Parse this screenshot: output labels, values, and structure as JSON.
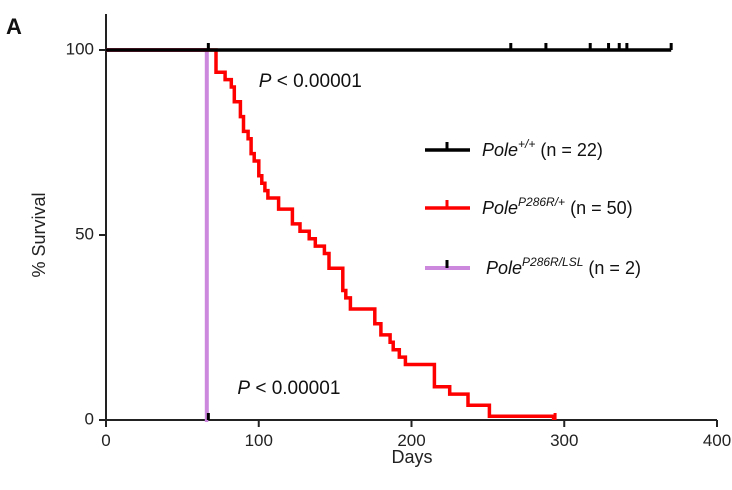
{
  "panel_label": "A",
  "chart_data": {
    "type": "line",
    "subtype": "kaplan-meier-survival",
    "xlabel": "Days",
    "ylabel": "% Survival",
    "xlim": [
      0,
      400
    ],
    "ylim": [
      0,
      100
    ],
    "xticks": [
      0,
      100,
      200,
      300,
      400
    ],
    "yticks": [
      0,
      50,
      100
    ],
    "grid": false,
    "legend_position": "right",
    "annotations": [
      {
        "italic": "P",
        "text": " < 0.00001",
        "x": 100,
        "y": 90
      },
      {
        "italic": "P",
        "text": " < 0.00001",
        "x": 86,
        "y": 7
      }
    ],
    "series": [
      {
        "name": "Pole+/+ (n = 22)",
        "legend": {
          "base": "Pole",
          "sup": "+/+",
          "n": "(n = 22)"
        },
        "color": "#000000",
        "steps": [
          [
            0,
            100
          ],
          [
            370,
            100
          ]
        ],
        "censored": [
          [
            67,
            100
          ],
          [
            265,
            100
          ],
          [
            288,
            100
          ],
          [
            317,
            100
          ],
          [
            329,
            100
          ],
          [
            336,
            100
          ],
          [
            341,
            100
          ],
          [
            370,
            100
          ]
        ]
      },
      {
        "name": "PoleP286R/+ (n = 50)",
        "legend": {
          "base": "Pole",
          "sup": "P286R/+",
          "n": "(n = 50)"
        },
        "color": "#ff0000",
        "steps": [
          [
            0,
            100
          ],
          [
            72,
            100
          ],
          [
            72,
            94
          ],
          [
            78,
            94
          ],
          [
            78,
            92
          ],
          [
            82,
            92
          ],
          [
            82,
            90
          ],
          [
            84,
            90
          ],
          [
            84,
            86
          ],
          [
            88,
            86
          ],
          [
            88,
            82
          ],
          [
            90,
            82
          ],
          [
            90,
            78
          ],
          [
            93,
            78
          ],
          [
            93,
            76
          ],
          [
            95,
            76
          ],
          [
            95,
            72
          ],
          [
            97,
            72
          ],
          [
            97,
            70
          ],
          [
            100,
            70
          ],
          [
            100,
            66
          ],
          [
            102,
            66
          ],
          [
            102,
            64
          ],
          [
            104,
            64
          ],
          [
            104,
            62
          ],
          [
            106,
            62
          ],
          [
            106,
            60
          ],
          [
            113,
            60
          ],
          [
            113,
            57
          ],
          [
            122,
            57
          ],
          [
            122,
            53
          ],
          [
            127,
            53
          ],
          [
            127,
            51
          ],
          [
            133,
            51
          ],
          [
            133,
            49
          ],
          [
            137,
            49
          ],
          [
            137,
            47
          ],
          [
            143,
            47
          ],
          [
            143,
            45
          ],
          [
            146,
            45
          ],
          [
            146,
            41
          ],
          [
            155,
            41
          ],
          [
            155,
            35
          ],
          [
            157,
            35
          ],
          [
            157,
            33
          ],
          [
            160,
            33
          ],
          [
            160,
            30
          ],
          [
            176,
            30
          ],
          [
            176,
            26
          ],
          [
            180,
            26
          ],
          [
            180,
            23
          ],
          [
            186,
            23
          ],
          [
            186,
            21
          ],
          [
            188,
            21
          ],
          [
            188,
            19
          ],
          [
            192,
            19
          ],
          [
            192,
            17
          ],
          [
            196,
            17
          ],
          [
            196,
            15
          ],
          [
            215,
            15
          ],
          [
            215,
            9
          ],
          [
            225,
            9
          ],
          [
            225,
            7
          ],
          [
            237,
            7
          ],
          [
            237,
            4
          ],
          [
            251,
            4
          ],
          [
            251,
            1
          ],
          [
            293,
            1
          ],
          [
            293,
            0
          ]
        ],
        "censored": [
          [
            294,
            0
          ]
        ]
      },
      {
        "name": "PoleP286R/LSL (n = 2)",
        "legend": {
          "base": "Pole",
          "sup": "P286R/LSL",
          "n": "(n = 2)"
        },
        "color": "#cc88dd",
        "steps": [
          [
            0,
            100
          ],
          [
            66,
            100
          ],
          [
            66,
            0
          ],
          [
            67,
            0
          ]
        ],
        "censored": [
          [
            67,
            0
          ]
        ]
      }
    ]
  }
}
